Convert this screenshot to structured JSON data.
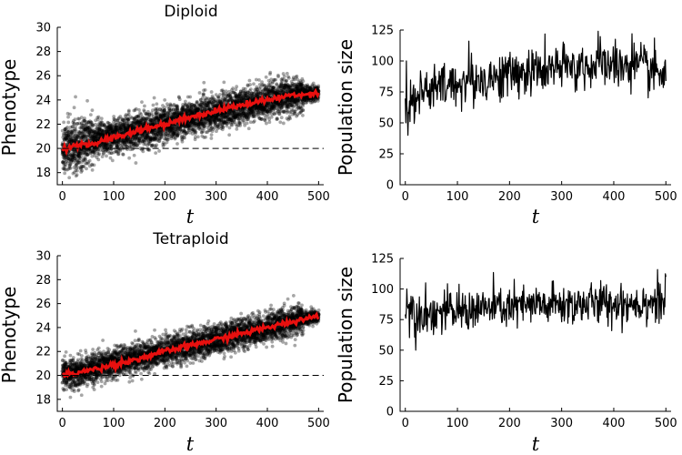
{
  "colors": {
    "points": "#000000",
    "mean": "#e8100f",
    "line": "#000000",
    "baseline": "#000000"
  },
  "chart_data": [
    {
      "type": "scatter",
      "title": "Diploid",
      "xlabel": "t",
      "ylabel": "Phenotype",
      "xlim": [
        -10,
        510
      ],
      "ylim": [
        17,
        30
      ],
      "xticks": [
        "0",
        "100",
        "200",
        "300",
        "400",
        "500"
      ],
      "yticks": [
        "18",
        "20",
        "22",
        "24",
        "26",
        "28",
        "30"
      ],
      "reference_line": {
        "y": 20,
        "style": "dashed"
      },
      "series": [
        {
          "kind": "scatter",
          "spread": "~0.7 sd, roughly constant",
          "x": [
            0,
            100,
            200,
            300,
            400,
            500
          ],
          "y": [
            20.0,
            21.0,
            22.0,
            23.0,
            24.0,
            24.6
          ]
        },
        {
          "kind": "mean-line",
          "x": [
            0,
            50,
            100,
            150,
            200,
            250,
            300,
            350,
            400,
            450,
            500
          ],
          "y": [
            20.0,
            20.3,
            20.9,
            21.5,
            22.0,
            22.6,
            23.1,
            23.6,
            24.0,
            24.4,
            24.6
          ]
        }
      ]
    },
    {
      "type": "line",
      "title": "",
      "xlabel": "t",
      "ylabel": "Population size",
      "xlim": [
        -10,
        510
      ],
      "ylim": [
        0,
        125
      ],
      "xticks": [
        "0",
        "100",
        "200",
        "300",
        "400",
        "500"
      ],
      "yticks": [
        "0",
        "25",
        "50",
        "75",
        "100",
        "125"
      ],
      "series": [
        {
          "x": [
            0,
            5,
            15,
            30,
            60,
            100,
            150,
            200,
            250,
            300,
            350,
            400,
            450,
            500
          ],
          "y": [
            60,
            62,
            70,
            74,
            78,
            82,
            85,
            89,
            92,
            94,
            96,
            97,
            95,
            88
          ],
          "noise_amplitude": 12,
          "spikes": [
            {
              "x": 2,
              "y": 100
            },
            {
              "x": 5,
              "y": 40
            },
            {
              "x": 122,
              "y": 116
            },
            {
              "x": 370,
              "y": 124
            },
            {
              "x": 435,
              "y": 122
            }
          ]
        }
      ]
    },
    {
      "type": "scatter",
      "title": "Tetraploid",
      "xlabel": "t",
      "ylabel": "Phenotype",
      "xlim": [
        -10,
        510
      ],
      "ylim": [
        17,
        30
      ],
      "xticks": [
        "0",
        "100",
        "200",
        "300",
        "400",
        "500"
      ],
      "yticks": [
        "18",
        "20",
        "22",
        "24",
        "26",
        "28",
        "30"
      ],
      "reference_line": {
        "y": 20,
        "style": "dashed"
      },
      "series": [
        {
          "kind": "scatter",
          "spread": "~0.6 sd",
          "x": [
            0,
            100,
            200,
            300,
            400,
            500
          ],
          "y": [
            20.0,
            21.0,
            22.0,
            23.0,
            24.0,
            25.0
          ]
        },
        {
          "kind": "mean-line",
          "x": [
            0,
            50,
            100,
            150,
            200,
            250,
            300,
            350,
            400,
            450,
            500
          ],
          "y": [
            20.0,
            20.4,
            20.9,
            21.4,
            22.0,
            22.5,
            23.0,
            23.5,
            24.0,
            24.5,
            25.0
          ]
        }
      ]
    },
    {
      "type": "line",
      "title": "",
      "xlabel": "t",
      "ylabel": "Population size",
      "xlim": [
        -10,
        510
      ],
      "ylim": [
        0,
        125
      ],
      "xticks": [
        "0",
        "100",
        "200",
        "300",
        "400",
        "500"
      ],
      "yticks": [
        "0",
        "25",
        "50",
        "75",
        "100",
        "125"
      ],
      "series": [
        {
          "x": [
            0,
            50,
            100,
            150,
            200,
            250,
            300,
            350,
            400,
            450,
            500
          ],
          "y": [
            85,
            80,
            82,
            84,
            85,
            86,
            87,
            88,
            88,
            89,
            90
          ],
          "noise_amplitude": 11,
          "spikes": [
            {
              "x": 3,
              "y": 100
            },
            {
              "x": 20,
              "y": 50
            },
            {
              "x": 500,
              "y": 110
            }
          ]
        }
      ]
    }
  ]
}
